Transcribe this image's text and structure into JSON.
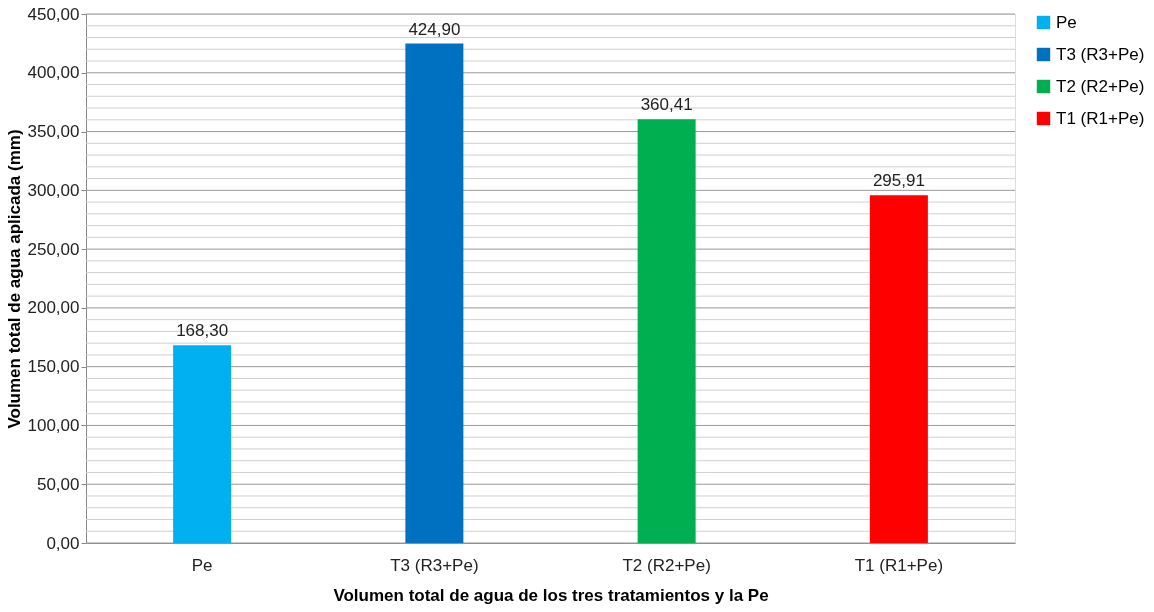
{
  "chart_data": {
    "type": "bar",
    "xlabel": "Volumen total de agua de los tres tratamientos y la Pe",
    "ylabel": "Volumen total de agua aplicada (mm)",
    "categories": [
      "Pe",
      "T3 (R3+Pe)",
      "T2 (R2+Pe)",
      "T1 (R1+Pe)"
    ],
    "series": [
      {
        "name": "Pe",
        "color": "#00b0f0",
        "values": [
          168.3,
          null,
          null,
          null
        ],
        "value_labels": [
          "168,30",
          null,
          null,
          null
        ]
      },
      {
        "name": "T3 (R3+Pe)",
        "color": "#0070c0",
        "values": [
          null,
          424.9,
          null,
          null
        ],
        "value_labels": [
          null,
          "424,90",
          null,
          null
        ]
      },
      {
        "name": "T2 (R2+Pe)",
        "color": "#00b050",
        "values": [
          null,
          null,
          360.41,
          null
        ],
        "value_labels": [
          null,
          null,
          "360,41",
          null
        ]
      },
      {
        "name": "T1 (R1+Pe)",
        "color": "#ff0000",
        "values": [
          null,
          null,
          null,
          295.91
        ],
        "value_labels": [
          null,
          null,
          null,
          "295,91"
        ]
      }
    ],
    "ylim": [
      0,
      450
    ],
    "yticks": [
      {
        "value": 0,
        "label": "0,00"
      },
      {
        "value": 10,
        "label": null
      },
      {
        "value": 20,
        "label": null
      },
      {
        "value": 30,
        "label": null
      },
      {
        "value": 40,
        "label": null
      },
      {
        "value": 50,
        "label": "50,00"
      },
      {
        "value": 60,
        "label": null
      },
      {
        "value": 70,
        "label": null
      },
      {
        "value": 80,
        "label": null
      },
      {
        "value": 90,
        "label": null
      },
      {
        "value": 100,
        "label": "100,00"
      },
      {
        "value": 110,
        "label": null
      },
      {
        "value": 120,
        "label": null
      },
      {
        "value": 130,
        "label": null
      },
      {
        "value": 140,
        "label": null
      },
      {
        "value": 150,
        "label": "150,00"
      },
      {
        "value": 160,
        "label": null
      },
      {
        "value": 170,
        "label": null
      },
      {
        "value": 180,
        "label": null
      },
      {
        "value": 190,
        "label": null
      },
      {
        "value": 200,
        "label": "200,00"
      },
      {
        "value": 210,
        "label": null
      },
      {
        "value": 220,
        "label": null
      },
      {
        "value": 230,
        "label": null
      },
      {
        "value": 240,
        "label": null
      },
      {
        "value": 250,
        "label": "250,00"
      },
      {
        "value": 260,
        "label": null
      },
      {
        "value": 270,
        "label": null
      },
      {
        "value": 280,
        "label": null
      },
      {
        "value": 290,
        "label": null
      },
      {
        "value": 300,
        "label": "300,00"
      },
      {
        "value": 310,
        "label": null
      },
      {
        "value": 320,
        "label": null
      },
      {
        "value": 330,
        "label": null
      },
      {
        "value": 340,
        "label": null
      },
      {
        "value": 350,
        "label": "350,00"
      },
      {
        "value": 360,
        "label": null
      },
      {
        "value": 370,
        "label": null
      },
      {
        "value": 380,
        "label": null
      },
      {
        "value": 390,
        "label": null
      },
      {
        "value": 400,
        "label": "400,00"
      },
      {
        "value": 410,
        "label": null
      },
      {
        "value": 420,
        "label": null
      },
      {
        "value": 430,
        "label": null
      },
      {
        "value": 440,
        "label": null
      },
      {
        "value": 450,
        "label": "450,00"
      }
    ],
    "grid": "y",
    "legend": "right"
  }
}
